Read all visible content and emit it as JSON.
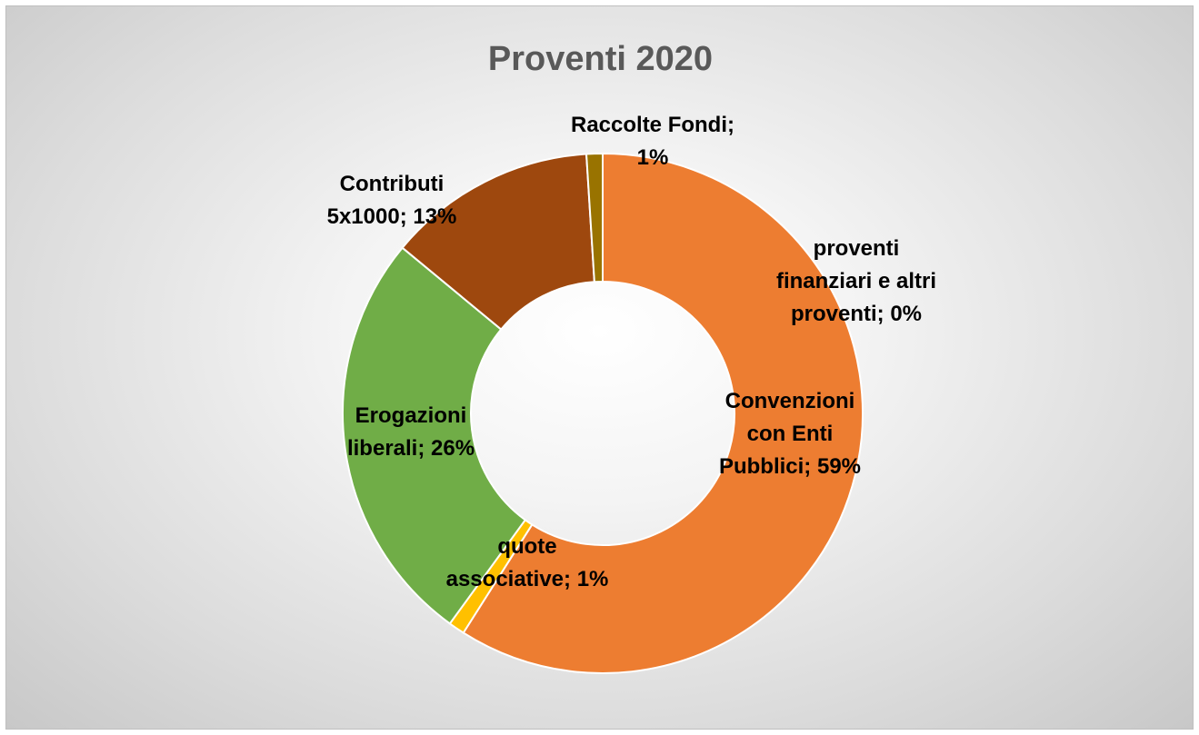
{
  "chart_data": {
    "type": "pie",
    "title": "Proventi 2020",
    "donut": true,
    "series": [
      {
        "categories": [
          "Convenzioni con Enti Pubblici",
          "quote associative",
          "Erogazioni liberali",
          "Contributi 5x1000",
          "Raccolte Fondi",
          "proventi finanziari e altri proventi"
        ],
        "values": [
          59,
          1,
          26,
          13,
          1,
          0
        ]
      }
    ],
    "labels": [
      {
        "lines": [
          "Convenzioni",
          "con Enti",
          "Pubblici; 59%"
        ]
      },
      {
        "lines": [
          "quote",
          "associative; 1%"
        ]
      },
      {
        "lines": [
          "Erogazioni",
          "liberali; 26%"
        ]
      },
      {
        "lines": [
          "Contributi",
          "5x1000; 13%"
        ]
      },
      {
        "lines": [
          "Raccolte Fondi;",
          "1%"
        ]
      },
      {
        "lines": [
          "proventi",
          "finanziari e altri",
          "proventi; 0%"
        ]
      }
    ],
    "colors": [
      "#ED7D31",
      "#FFC000",
      "#70AD47",
      "#9E480E",
      "#997300",
      "#636363"
    ],
    "legend": "none"
  }
}
